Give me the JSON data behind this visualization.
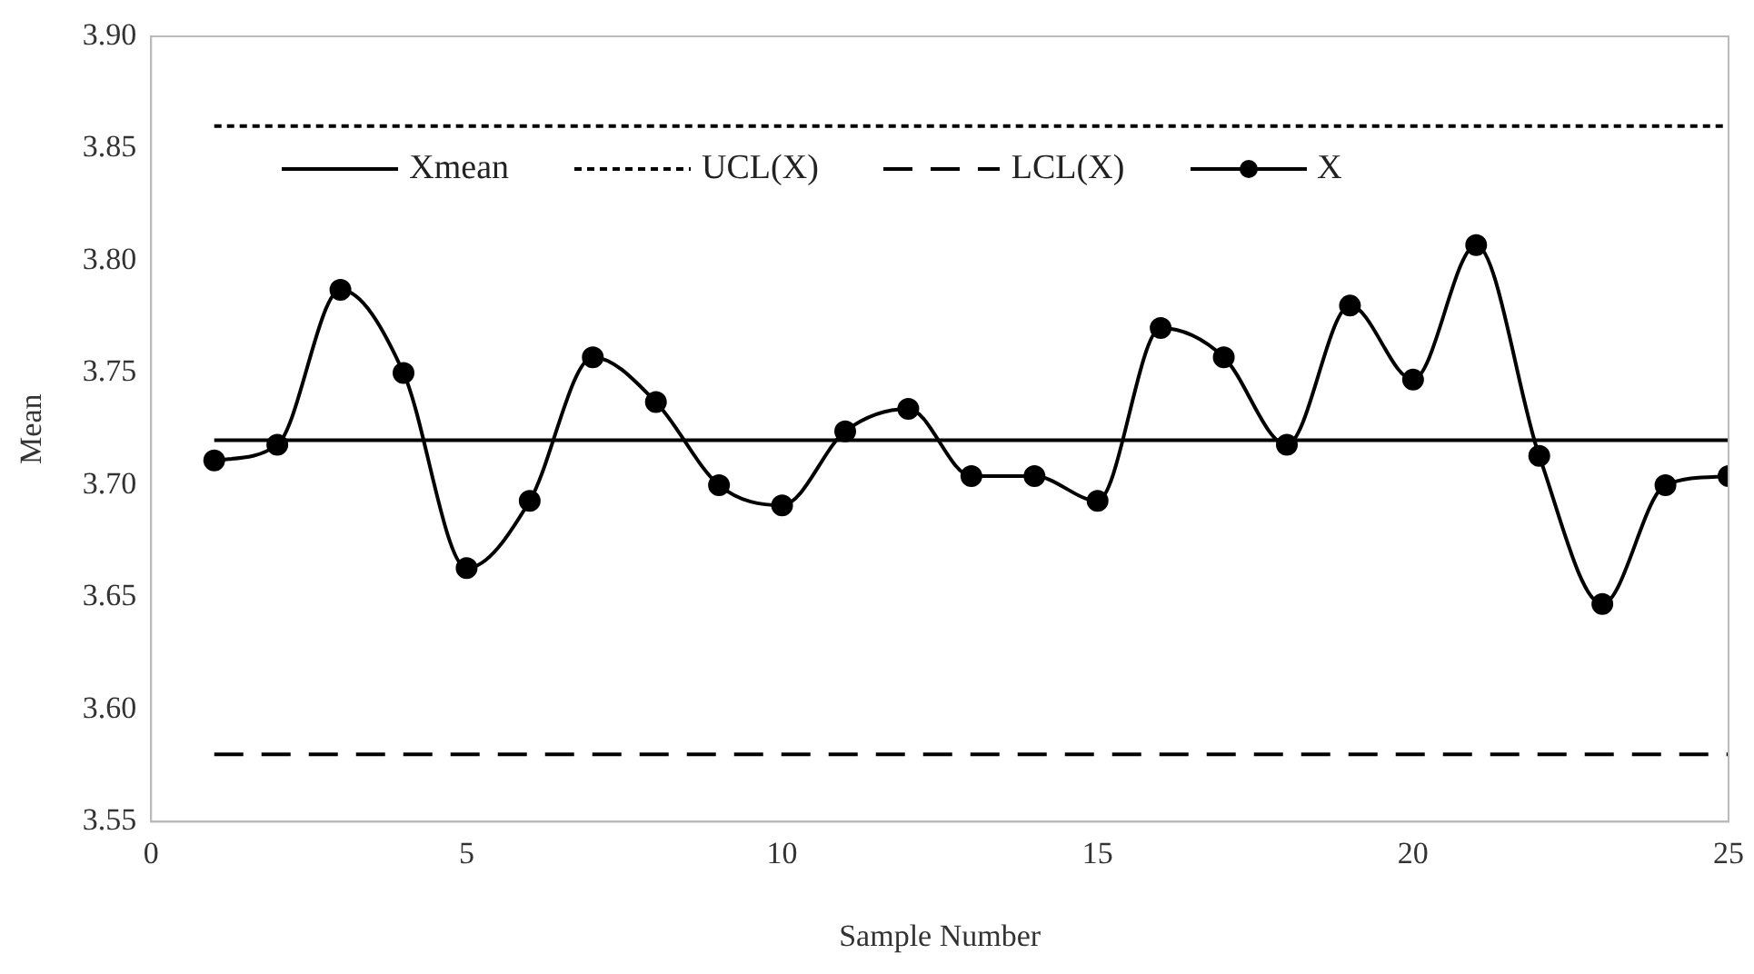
{
  "chart_data": {
    "type": "line",
    "xlabel": "Sample Number",
    "ylabel": "Mean",
    "xlim": [
      0,
      25
    ],
    "xticks": [
      0,
      5,
      10,
      15,
      20,
      25
    ],
    "ylim": [
      3.55,
      3.9
    ],
    "yticks": [
      {
        "value": 3.55,
        "label": "3.55"
      },
      {
        "value": 3.6,
        "label": "3.60"
      },
      {
        "value": 3.65,
        "label": "3.65"
      },
      {
        "value": 3.7,
        "label": "3.70"
      },
      {
        "value": 3.75,
        "label": "3.75"
      },
      {
        "value": 3.8,
        "label": "3.80"
      },
      {
        "value": 3.85,
        "label": "3.85"
      },
      {
        "value": 3.9,
        "label": "3.90"
      }
    ],
    "grid": false,
    "legend": "top",
    "series": [
      {
        "name": "Xmean",
        "color": "#000000",
        "x": [
          1,
          25
        ],
        "values": [
          3.72,
          3.72
        ],
        "line_style": "solid",
        "marker": "none"
      },
      {
        "name": "UCL(X)",
        "color": "#000000",
        "x": [
          1,
          25
        ],
        "values": [
          3.86,
          3.86
        ],
        "line_style": "dotted",
        "marker": "none"
      },
      {
        "name": "LCL(X)",
        "color": "#000000",
        "x": [
          1,
          25
        ],
        "values": [
          3.58,
          3.58
        ],
        "line_style": "dashed",
        "marker": "none"
      },
      {
        "name": "X",
        "color": "#000000",
        "x": [
          1,
          2,
          3,
          4,
          5,
          6,
          7,
          8,
          9,
          10,
          11,
          12,
          13,
          14,
          15,
          16,
          17,
          18,
          19,
          20,
          21,
          22,
          23,
          24,
          25
        ],
        "values": [
          3.711,
          3.718,
          3.787,
          3.75,
          3.663,
          3.693,
          3.757,
          3.737,
          3.7,
          3.691,
          3.724,
          3.734,
          3.704,
          3.704,
          3.693,
          3.77,
          3.757,
          3.718,
          3.78,
          3.747,
          3.807,
          3.713,
          3.647,
          3.7,
          3.704
        ],
        "line_style": "solid",
        "marker": "circle"
      }
    ]
  }
}
